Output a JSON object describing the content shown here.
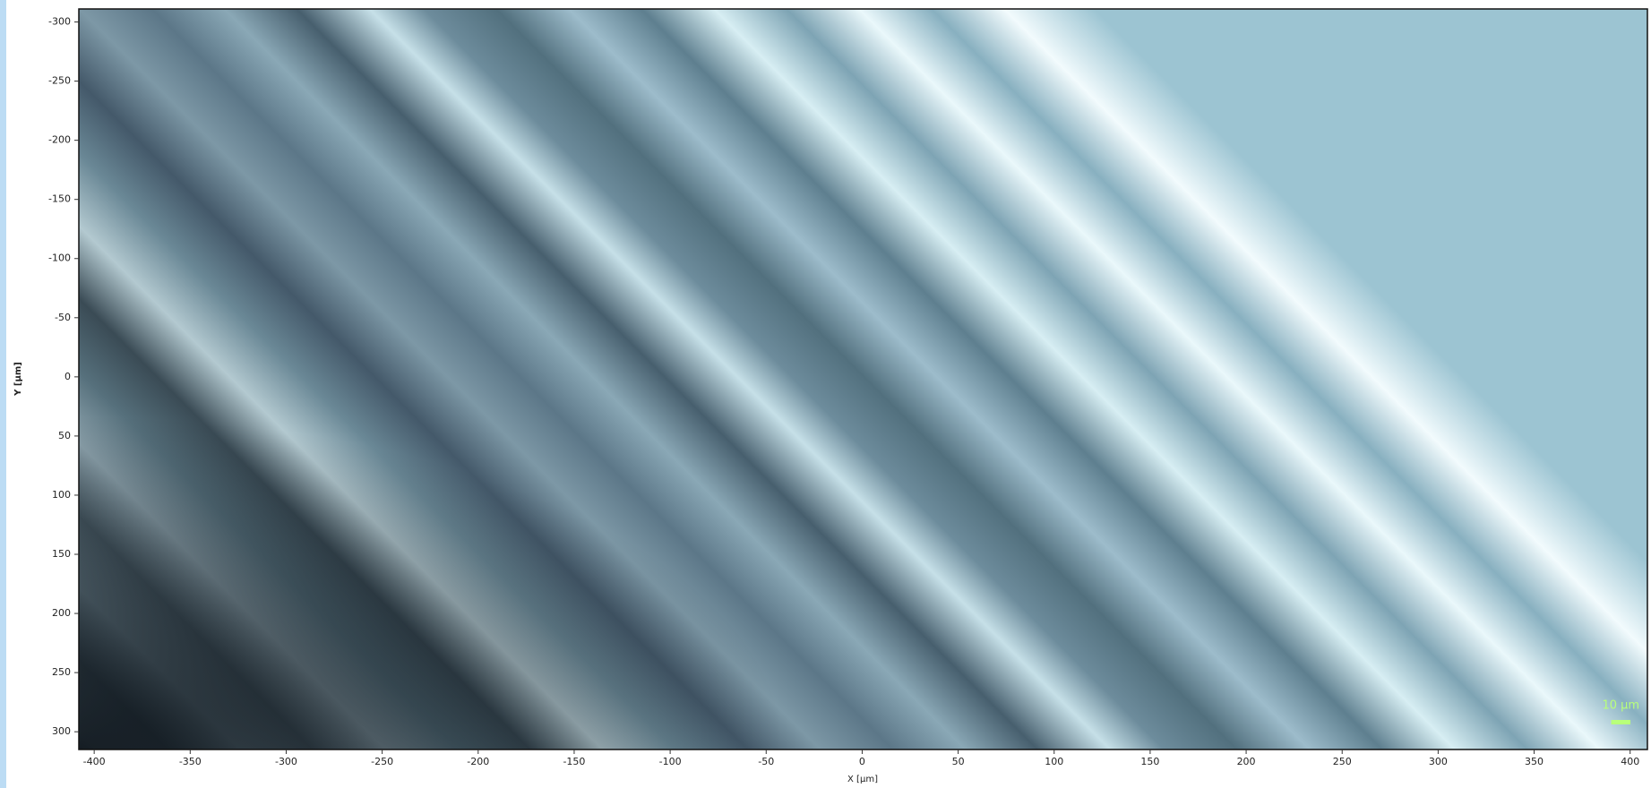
{
  "chart_data": {
    "type": "image",
    "xlabel": "X [µm]",
    "ylabel": "Y [µm]",
    "xlim": [
      -408,
      409
    ],
    "ylim": [
      -311,
      315
    ],
    "y_inverted": true,
    "xticks": [
      -400,
      -350,
      -300,
      -250,
      -200,
      -150,
      -100,
      -50,
      0,
      50,
      100,
      150,
      200,
      250,
      300,
      350,
      400
    ],
    "yticks": [
      -300,
      -250,
      -200,
      -150,
      -100,
      -50,
      0,
      50,
      100,
      150,
      200,
      250,
      300
    ],
    "scale_bar": {
      "value": 10,
      "label": "10 µm"
    }
  }
}
